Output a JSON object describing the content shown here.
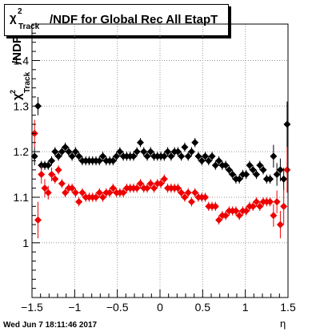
{
  "header": {
    "title_symbol": "χ",
    "title_sup": "2",
    "title_sub": "Track",
    "title_text": "/NDF for Global Rec All EtapT"
  },
  "footer": {
    "date": "Wed Jun  7 18:11:46 2017"
  },
  "chart_data": {
    "type": "scatter",
    "xlabel": "η",
    "ylabel_main": "χ",
    "ylabel_sup": "2",
    "ylabel_sub": "Track",
    "ylabel_suffix": "/NDF",
    "xlim": [
      -1.5,
      1.5
    ],
    "ylim": [
      0.88,
      1.48
    ],
    "x_ticks": [
      -1.5,
      -1,
      -0.5,
      0,
      0.5,
      1,
      1.5
    ],
    "x_tick_labels": [
      "−1.5",
      "−1",
      "−0.5",
      "0",
      "0.5",
      "1",
      "1.5"
    ],
    "y_ticks": [
      1.0,
      1.1,
      1.2,
      1.3,
      1.4
    ],
    "y_tick_labels": [
      "1",
      "1.1",
      "1.2",
      "1.3",
      "1.4"
    ],
    "grid": true,
    "series": [
      {
        "color": "#000000",
        "x": [
          -1.47,
          -1.43,
          -1.39,
          -1.35,
          -1.31,
          -1.27,
          -1.23,
          -1.19,
          -1.15,
          -1.11,
          -1.07,
          -1.03,
          -0.99,
          -0.95,
          -0.91,
          -0.87,
          -0.83,
          -0.79,
          -0.75,
          -0.71,
          -0.67,
          -0.63,
          -0.59,
          -0.55,
          -0.51,
          -0.47,
          -0.43,
          -0.39,
          -0.35,
          -0.31,
          -0.27,
          -0.23,
          -0.19,
          -0.15,
          -0.11,
          -0.07,
          -0.03,
          0.01,
          0.05,
          0.09,
          0.13,
          0.17,
          0.21,
          0.25,
          0.29,
          0.33,
          0.37,
          0.41,
          0.45,
          0.49,
          0.53,
          0.57,
          0.61,
          0.65,
          0.69,
          0.73,
          0.77,
          0.81,
          0.85,
          0.89,
          0.93,
          0.97,
          1.01,
          1.05,
          1.09,
          1.13,
          1.17,
          1.21,
          1.25,
          1.29,
          1.33,
          1.37,
          1.41,
          1.45,
          1.49
        ],
        "y": [
          1.19,
          1.3,
          1.17,
          1.17,
          1.17,
          1.18,
          1.2,
          1.19,
          1.2,
          1.21,
          1.2,
          1.19,
          1.2,
          1.19,
          1.18,
          1.18,
          1.18,
          1.18,
          1.18,
          1.18,
          1.19,
          1.18,
          1.18,
          1.18,
          1.19,
          1.2,
          1.19,
          1.19,
          1.19,
          1.19,
          1.2,
          1.22,
          1.2,
          1.19,
          1.2,
          1.19,
          1.19,
          1.19,
          1.19,
          1.2,
          1.19,
          1.2,
          1.2,
          1.19,
          1.21,
          1.19,
          1.2,
          1.22,
          1.19,
          1.18,
          1.19,
          1.18,
          1.19,
          1.17,
          1.18,
          1.17,
          1.17,
          1.16,
          1.15,
          1.14,
          1.14,
          1.15,
          1.15,
          1.17,
          1.16,
          1.15,
          1.17,
          1.16,
          1.14,
          1.14,
          1.19,
          1.15,
          1.16,
          1.14,
          1.26
        ],
        "err": [
          0.02,
          0.02,
          0.01,
          0.01,
          0.01,
          0.01,
          0.01,
          0.01,
          0.01,
          0.01,
          0.01,
          0.01,
          0.01,
          0.01,
          0.01,
          0.01,
          0.01,
          0.01,
          0.01,
          0.01,
          0.01,
          0.01,
          0.01,
          0.01,
          0.01,
          0.01,
          0.01,
          0.01,
          0.01,
          0.01,
          0.01,
          0.01,
          0.01,
          0.01,
          0.01,
          0.01,
          0.01,
          0.01,
          0.01,
          0.01,
          0.01,
          0.01,
          0.01,
          0.01,
          0.01,
          0.01,
          0.01,
          0.01,
          0.01,
          0.01,
          0.01,
          0.01,
          0.01,
          0.01,
          0.01,
          0.01,
          0.01,
          0.01,
          0.01,
          0.01,
          0.01,
          0.01,
          0.01,
          0.01,
          0.01,
          0.01,
          0.01,
          0.01,
          0.01,
          0.01,
          0.025,
          0.025,
          0.025,
          0.025,
          0.05
        ]
      },
      {
        "color": "#ee0000",
        "x": [
          -1.47,
          -1.43,
          -1.39,
          -1.35,
          -1.31,
          -1.27,
          -1.23,
          -1.19,
          -1.15,
          -1.11,
          -1.07,
          -1.03,
          -0.99,
          -0.95,
          -0.91,
          -0.87,
          -0.83,
          -0.79,
          -0.75,
          -0.71,
          -0.67,
          -0.63,
          -0.59,
          -0.55,
          -0.51,
          -0.47,
          -0.43,
          -0.39,
          -0.35,
          -0.31,
          -0.27,
          -0.23,
          -0.19,
          -0.15,
          -0.11,
          -0.07,
          -0.03,
          0.01,
          0.05,
          0.09,
          0.13,
          0.17,
          0.21,
          0.25,
          0.29,
          0.33,
          0.37,
          0.41,
          0.45,
          0.49,
          0.53,
          0.57,
          0.61,
          0.65,
          0.69,
          0.73,
          0.77,
          0.81,
          0.85,
          0.89,
          0.93,
          0.97,
          1.01,
          1.05,
          1.09,
          1.13,
          1.17,
          1.21,
          1.25,
          1.29,
          1.33,
          1.37,
          1.41,
          1.45,
          1.49
        ],
        "y": [
          1.24,
          1.05,
          1.15,
          1.12,
          1.11,
          1.15,
          1.14,
          1.16,
          1.13,
          1.11,
          1.12,
          1.12,
          1.11,
          1.09,
          1.11,
          1.1,
          1.1,
          1.1,
          1.1,
          1.11,
          1.1,
          1.11,
          1.11,
          1.12,
          1.11,
          1.11,
          1.11,
          1.12,
          1.12,
          1.12,
          1.12,
          1.13,
          1.12,
          1.12,
          1.13,
          1.12,
          1.13,
          1.13,
          1.14,
          1.12,
          1.12,
          1.12,
          1.12,
          1.11,
          1.1,
          1.11,
          1.09,
          1.11,
          1.1,
          1.1,
          1.1,
          1.08,
          1.08,
          1.08,
          1.05,
          1.06,
          1.06,
          1.07,
          1.07,
          1.07,
          1.06,
          1.07,
          1.07,
          1.08,
          1.08,
          1.09,
          1.08,
          1.09,
          1.09,
          1.09,
          1.06,
          1.09,
          1.04,
          1.08,
          1.16
        ],
        "err": [
          0.03,
          0.04,
          0.02,
          0.02,
          0.015,
          0.015,
          0.01,
          0.01,
          0.01,
          0.01,
          0.01,
          0.01,
          0.01,
          0.01,
          0.01,
          0.01,
          0.01,
          0.01,
          0.01,
          0.01,
          0.01,
          0.01,
          0.01,
          0.01,
          0.01,
          0.01,
          0.01,
          0.01,
          0.01,
          0.01,
          0.01,
          0.01,
          0.01,
          0.01,
          0.01,
          0.01,
          0.01,
          0.01,
          0.01,
          0.01,
          0.01,
          0.01,
          0.01,
          0.01,
          0.01,
          0.01,
          0.01,
          0.01,
          0.01,
          0.01,
          0.01,
          0.01,
          0.01,
          0.01,
          0.01,
          0.01,
          0.01,
          0.01,
          0.01,
          0.01,
          0.01,
          0.01,
          0.01,
          0.01,
          0.01,
          0.01,
          0.01,
          0.01,
          0.01,
          0.01,
          0.025,
          0.025,
          0.03,
          0.04,
          0.05
        ]
      }
    ]
  }
}
